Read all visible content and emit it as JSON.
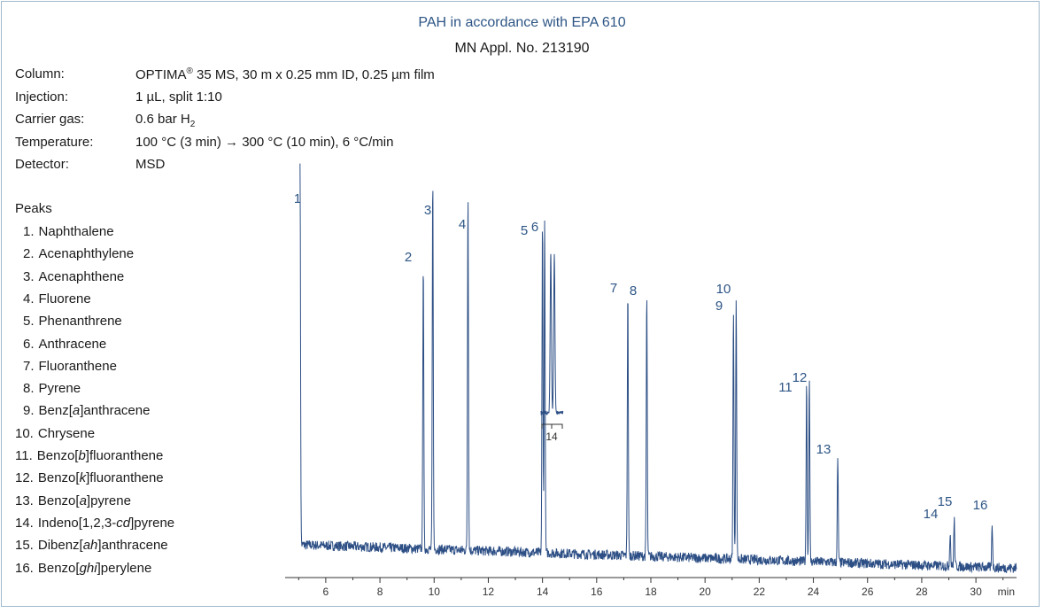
{
  "header": {
    "title": "PAH in accordance with EPA 610",
    "subtitle": "MN Appl. No. 213190"
  },
  "conditions": [
    {
      "label": "Column:",
      "value_html": "OPTIMA<sup>®</sup> 35 MS, 30 m x 0.25 mm ID, 0.25 µm film"
    },
    {
      "label": "Injection:",
      "value_html": "1 µL, split 1:10"
    },
    {
      "label": "Carrier gas:",
      "value_html": "0.6 bar H<sub>2</sub>"
    },
    {
      "label": "Temperature:",
      "value_html": "100 °C (3 min) → 300 °C (10 min), 6 °C/min"
    },
    {
      "label": "Detector:",
      "value_html": "MSD"
    }
  ],
  "peaks_heading": "Peaks",
  "peaks": [
    {
      "num": "1.",
      "name_html": "Naphthalene"
    },
    {
      "num": "2.",
      "name_html": "Acenaphthylene"
    },
    {
      "num": "3.",
      "name_html": "Acenaphthene"
    },
    {
      "num": "4.",
      "name_html": "Fluorene"
    },
    {
      "num": "5.",
      "name_html": "Phenanthrene"
    },
    {
      "num": "6.",
      "name_html": "Anthracene"
    },
    {
      "num": "7.",
      "name_html": "Fluoranthene"
    },
    {
      "num": "8.",
      "name_html": "Pyrene"
    },
    {
      "num": "9.",
      "name_html": "Benz[<i>a</i>]anthracene"
    },
    {
      "num": "10.",
      "name_html": "Chrysene"
    },
    {
      "num": "11.",
      "name_html": "Benzo[<i>b</i>]fluoranthene"
    },
    {
      "num": "12.",
      "name_html": "Benzo[<i>k</i>]fluoranthene"
    },
    {
      "num": "13.",
      "name_html": "Benzo[<i>a</i>]pyrene"
    },
    {
      "num": "14.",
      "name_html": "Indeno[1,2,3-<i>cd</i>]pyrene"
    },
    {
      "num": "15.",
      "name_html": "Dibenz[<i>ah</i>]anthracene"
    },
    {
      "num": "16.",
      "name_html": "Benzo[<i>ghi</i>]perylene"
    }
  ],
  "chart_data": {
    "type": "line",
    "xlabel": "min",
    "xlim": [
      4.5,
      31.5
    ],
    "ylim": [
      0,
      100
    ],
    "x_ticks": [
      6,
      8,
      10,
      12,
      14,
      16,
      18,
      20,
      22,
      24,
      26,
      28,
      30
    ],
    "baseline": {
      "start": 8.5,
      "end": 2.5
    },
    "peaks": [
      {
        "label": "1",
        "rt": 5.05,
        "height": 100
      },
      {
        "label": "2",
        "rt": 9.6,
        "height": 75
      },
      {
        "label": "3",
        "rt": 9.95,
        "height": 96
      },
      {
        "label": "4",
        "rt": 11.25,
        "height": 93
      },
      {
        "label": "5",
        "rt": 14.0,
        "height": 86
      },
      {
        "label": "6",
        "rt": 14.08,
        "height": 86
      },
      {
        "label": "7",
        "rt": 17.15,
        "height": 69
      },
      {
        "label": "8",
        "rt": 17.85,
        "height": 68
      },
      {
        "label": "9",
        "rt": 21.05,
        "height": 65
      },
      {
        "label": "10",
        "rt": 21.15,
        "height": 68
      },
      {
        "label": "11",
        "rt": 23.75,
        "height": 47
      },
      {
        "label": "12",
        "rt": 23.85,
        "height": 48
      },
      {
        "label": "13",
        "rt": 24.9,
        "height": 27
      },
      {
        "label": "14",
        "rt": 29.05,
        "height": 9
      },
      {
        "label": "15",
        "rt": 29.2,
        "height": 12
      },
      {
        "label": "16",
        "rt": 30.6,
        "height": 11
      }
    ],
    "inset": {
      "label": "14",
      "description_peaks": 2
    }
  }
}
